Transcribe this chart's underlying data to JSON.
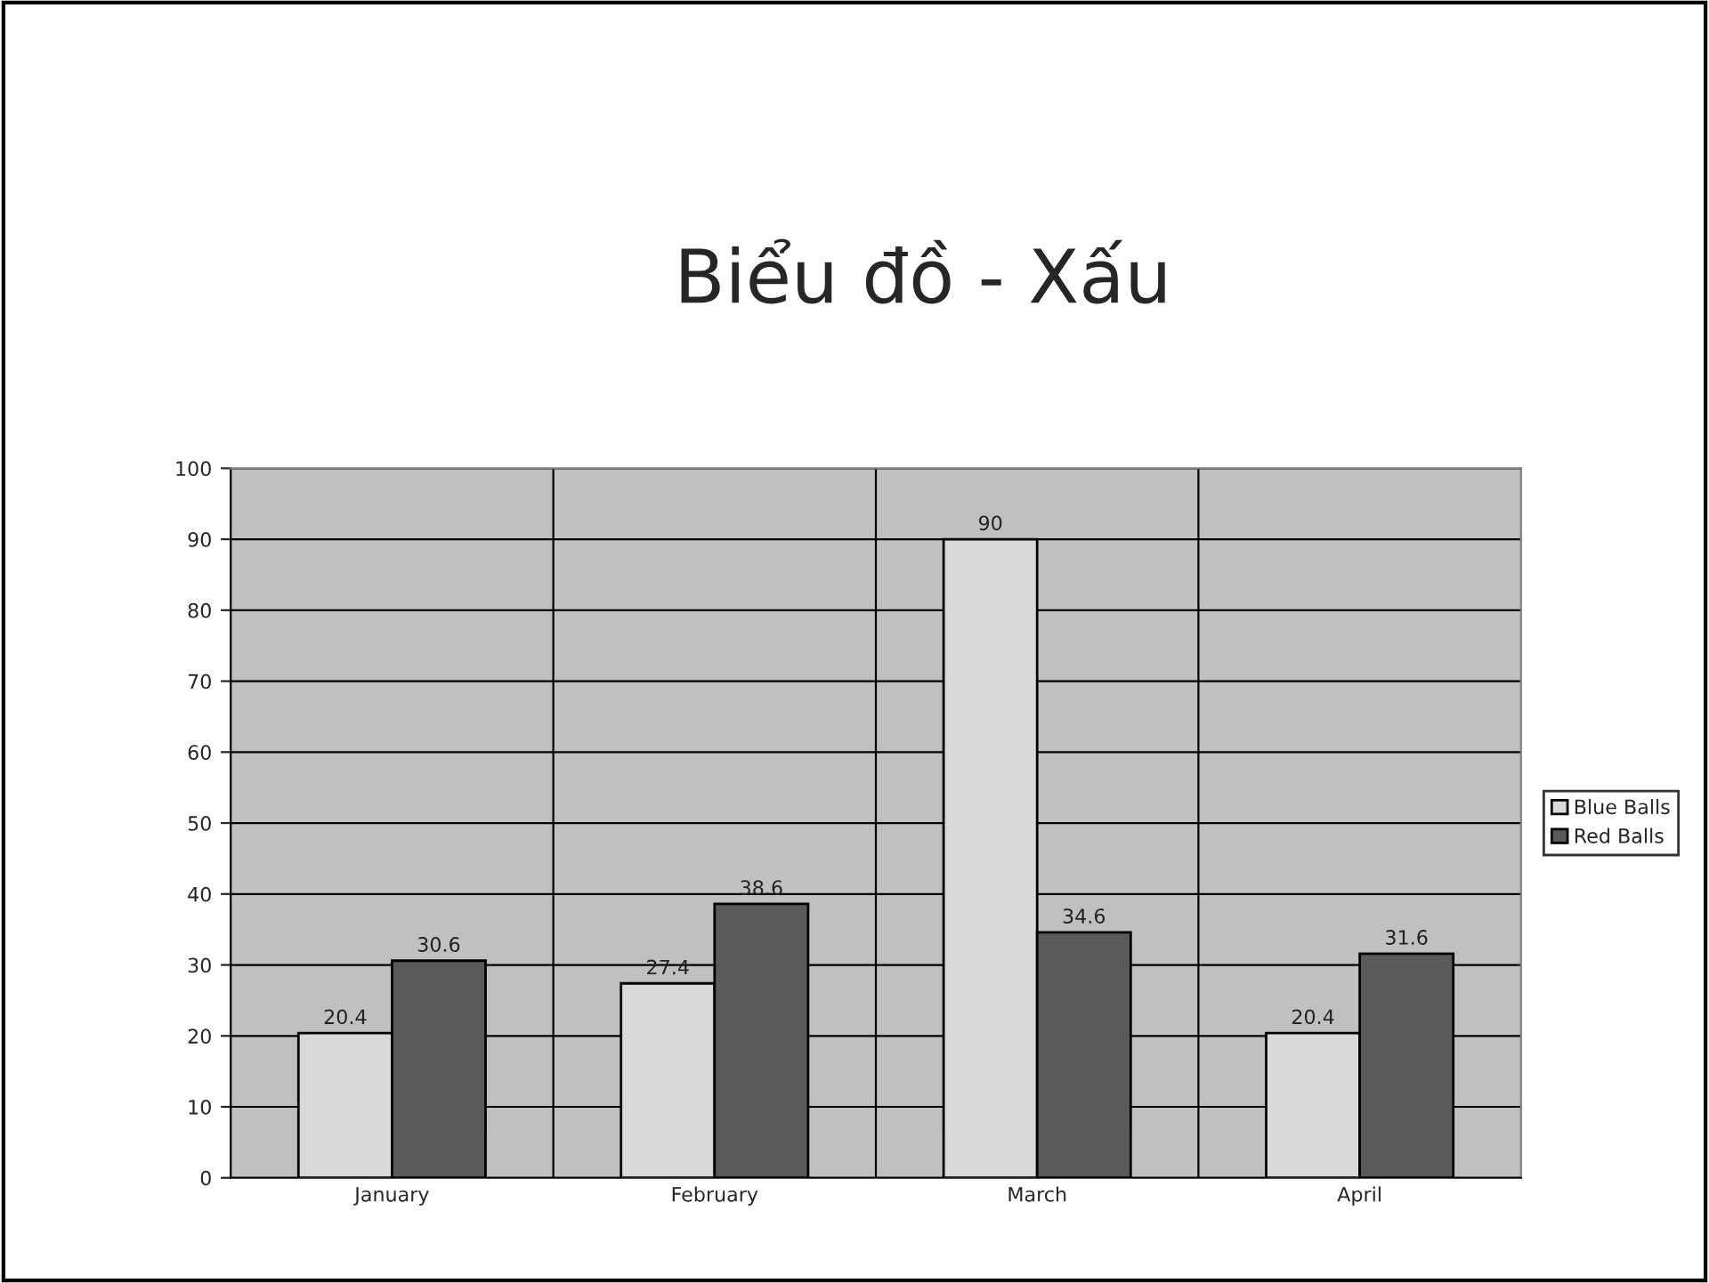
{
  "chart_data": {
    "type": "bar",
    "title": "Biểu đồ - Xấu",
    "categories": [
      "January",
      "February",
      "March",
      "April"
    ],
    "series": [
      {
        "name": "Blue Balls",
        "color": "#d9d9d9",
        "values": [
          20.4,
          27.4,
          90,
          20.4
        ]
      },
      {
        "name": "Red Balls",
        "color": "#5a5a5a",
        "values": [
          30.6,
          38.6,
          34.6,
          31.6
        ]
      }
    ],
    "ylim": [
      0,
      100
    ],
    "yticks": [
      0,
      10,
      20,
      30,
      40,
      50,
      60,
      70,
      80,
      90,
      100
    ],
    "data_labels": true,
    "grid": true,
    "legend": "right"
  }
}
